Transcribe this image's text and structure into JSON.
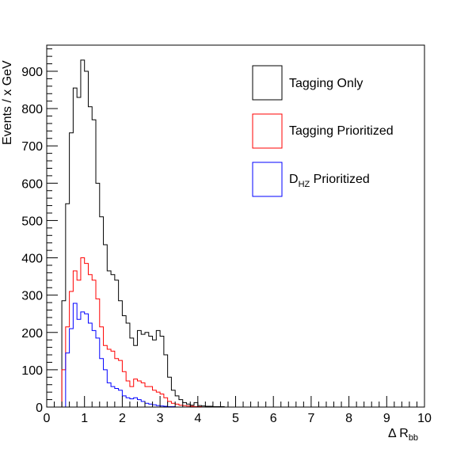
{
  "chart_data": {
    "type": "histogram",
    "xlabel": "Δ R",
    "xlabel_sub": "bb",
    "ylabel": "Events / x GeV",
    "xlim": [
      0,
      10
    ],
    "ylim": [
      0,
      970
    ],
    "x_ticks": [
      0,
      1,
      2,
      3,
      4,
      5,
      6,
      7,
      8,
      9,
      10
    ],
    "y_ticks": [
      0,
      100,
      200,
      300,
      400,
      500,
      600,
      700,
      800,
      900
    ],
    "grid": false,
    "legend_position": "top-right",
    "bin_edges_start": 0.4,
    "bin_width": 0.1,
    "series": [
      {
        "name": "Tagging Only",
        "color": "#000000",
        "values": [
          285,
          545,
          735,
          855,
          830,
          930,
          900,
          805,
          770,
          600,
          510,
          435,
          365,
          355,
          340,
          285,
          245,
          225,
          185,
          165,
          205,
          195,
          200,
          190,
          180,
          205,
          190,
          140,
          80,
          45,
          30,
          20,
          12,
          8,
          5,
          12,
          4,
          3,
          2,
          2,
          1,
          1,
          1
        ]
      },
      {
        "name": "Tagging Prioritized",
        "color": "#ff0000",
        "values": [
          100,
          215,
          310,
          365,
          340,
          400,
          385,
          355,
          340,
          290,
          215,
          165,
          155,
          150,
          130,
          125,
          95,
          70,
          55,
          75,
          70,
          65,
          55,
          55,
          45,
          40,
          35,
          25,
          15,
          10,
          8,
          5,
          4,
          3,
          2,
          1,
          1
        ]
      },
      {
        "name": "D_HZ Prioritized",
        "color": "#0000ff",
        "values": [
          0,
          145,
          210,
          278,
          235,
          255,
          250,
          225,
          205,
          185,
          130,
          100,
          65,
          55,
          50,
          45,
          30,
          25,
          22,
          25,
          20,
          15,
          10,
          8,
          6,
          4,
          3,
          2,
          1,
          1
        ]
      }
    ]
  },
  "legend": {
    "items": [
      {
        "label": "Tagging Only",
        "color": "#000000"
      },
      {
        "label": "Tagging Prioritized",
        "color": "#ff0000"
      },
      {
        "label_main": "D",
        "label_sub": "HZ",
        "label_rest": " Prioritized",
        "color": "#0000ff"
      }
    ]
  }
}
